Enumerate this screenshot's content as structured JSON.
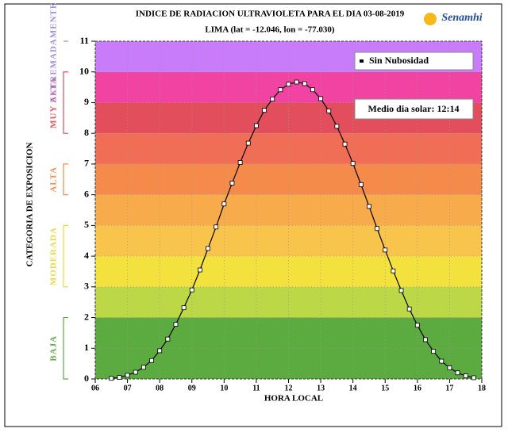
{
  "chart_data": {
    "type": "line",
    "title": "INDICE DE RADIACION ULTRAVIOLETA PARA EL DIA 03-08-2019",
    "subtitle": "LIMA (lat = -12.046, lon = -77.030)",
    "logo": "Senamhi",
    "x_label": "HORA LOCAL",
    "y_label": "CATEGORIA DE EXPOSICION",
    "annotation": "Medio dia solar: 12:14",
    "legend_position": "upper right",
    "grid": true,
    "xlim": [
      6,
      18
    ],
    "ylim": [
      0,
      11
    ],
    "xticks": [
      {
        "value": 6,
        "label": "06"
      },
      {
        "value": 7,
        "label": "07"
      },
      {
        "value": 8,
        "label": "08"
      },
      {
        "value": 9,
        "label": "09"
      },
      10,
      11,
      12,
      13,
      14,
      15,
      16,
      17,
      18
    ],
    "yticks": [
      0,
      1,
      2,
      3,
      4,
      5,
      6,
      7,
      8,
      9,
      10,
      11
    ],
    "bands": [
      {
        "from": 0,
        "to": 2,
        "color": "#5cab40"
      },
      {
        "from": 2,
        "to": 3,
        "color": "#bcd846"
      },
      {
        "from": 3,
        "to": 4,
        "color": "#f3e23d"
      },
      {
        "from": 4,
        "to": 5,
        "color": "#f8c44c"
      },
      {
        "from": 5,
        "to": 6,
        "color": "#f7ab4b"
      },
      {
        "from": 6,
        "to": 7,
        "color": "#f58b4a"
      },
      {
        "from": 7,
        "to": 8,
        "color": "#ef6e55"
      },
      {
        "from": 8,
        "to": 9,
        "color": "#e24e5b"
      },
      {
        "from": 9,
        "to": 10,
        "color": "#f043a2"
      },
      {
        "from": 10,
        "to": 11,
        "color": "#c87cfa"
      }
    ],
    "exposure_categories": [
      {
        "label": "BAJA",
        "from": 0,
        "to": 2,
        "color": "#5cab40"
      },
      {
        "label": "MODERADA",
        "from": 3,
        "to": 5,
        "color": "#eadb3a"
      },
      {
        "label": "ALTA",
        "from": 6,
        "to": 7,
        "color": "#f58b4a"
      },
      {
        "label": "MUY ALTA",
        "from": 8,
        "to": 10,
        "color": "#e24e5b"
      },
      {
        "label": "EXTREMADAMENTE",
        "from": 11,
        "to": 11,
        "color": "#9b8cf0"
      }
    ],
    "x": [
      6.5,
      6.75,
      7,
      7.25,
      7.5,
      7.75,
      8,
      8.25,
      8.5,
      8.75,
      9,
      9.25,
      9.5,
      9.75,
      10,
      10.25,
      10.5,
      10.75,
      11,
      11.25,
      11.5,
      11.75,
      12,
      12.25,
      12.5,
      12.75,
      13,
      13.25,
      13.5,
      13.75,
      14,
      14.25,
      14.5,
      14.75,
      15,
      15.25,
      15.5,
      15.75,
      16,
      16.25,
      16.5,
      16.75,
      17,
      17.25,
      17.5,
      17.75
    ],
    "series": [
      {
        "name": "Sin Nubosidad",
        "color": "#000000",
        "values": [
          0.02,
          0.05,
          0.12,
          0.22,
          0.38,
          0.6,
          0.92,
          1.3,
          1.78,
          2.32,
          2.9,
          3.55,
          4.25,
          4.95,
          5.7,
          6.38,
          7.05,
          7.68,
          8.25,
          8.75,
          9.12,
          9.42,
          9.6,
          9.67,
          9.62,
          9.42,
          9.13,
          8.73,
          8.23,
          7.65,
          7.02,
          6.33,
          5.62,
          4.9,
          4.2,
          3.52,
          2.88,
          2.28,
          1.75,
          1.28,
          0.9,
          0.58,
          0.36,
          0.2,
          0.1,
          0.04
        ]
      }
    ]
  }
}
